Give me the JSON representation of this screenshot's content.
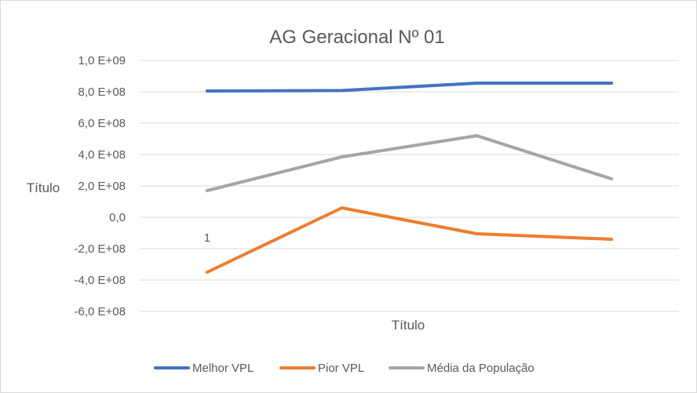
{
  "chart_data": {
    "type": "line",
    "title": "AG Geracional Nº 01",
    "xlabel": "Título",
    "ylabel": "Título",
    "categories": [
      "1",
      "",
      "",
      ""
    ],
    "ylim": [
      -600000000,
      1000000000
    ],
    "yticks": [
      {
        "value": 1000000000,
        "label": "1,0 E+09"
      },
      {
        "value": 800000000,
        "label": "8,0 E+08"
      },
      {
        "value": 600000000,
        "label": "6,0 E+08"
      },
      {
        "value": 400000000,
        "label": "4,0 E+08"
      },
      {
        "value": 200000000,
        "label": "2,0 E+08"
      },
      {
        "value": 0,
        "label": "0,0"
      },
      {
        "value": -200000000,
        "label": "-2,0 E+08"
      },
      {
        "value": -400000000,
        "label": "-4,0 E+08"
      },
      {
        "value": -600000000,
        "label": "-6,0 E+08"
      }
    ],
    "grid": true,
    "legend_position": "bottom",
    "series": [
      {
        "name": "Melhor VPL",
        "color": "#4472c4",
        "values": [
          805000000,
          808000000,
          855000000,
          855000000
        ]
      },
      {
        "name": "Pior VPL",
        "color": "#ed7d31",
        "values": [
          -350000000,
          60000000,
          -105000000,
          -140000000
        ]
      },
      {
        "name": "Média da População",
        "color": "#a5a5a5",
        "values": [
          170000000,
          385000000,
          520000000,
          245000000
        ]
      }
    ]
  }
}
